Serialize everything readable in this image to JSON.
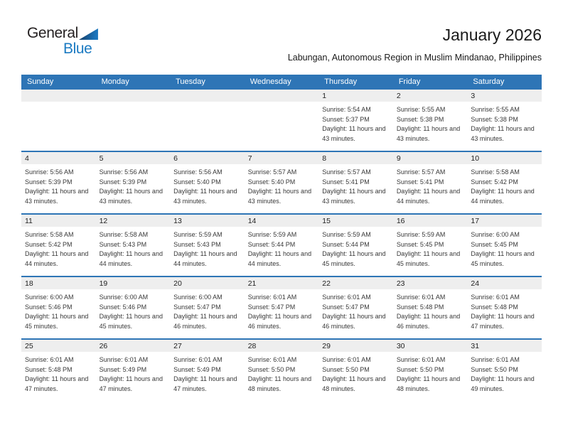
{
  "logo": {
    "line1": "General",
    "line2": "Blue"
  },
  "title": "January 2026",
  "subtitle": "Labungan, Autonomous Region in Muslim Mindanao, Philippines",
  "colors": {
    "header_blue": "#2E75B6",
    "row_line_blue": "#2E75B6",
    "date_band_gray": "#EEEEEE",
    "logo_blue": "#1B7AC2",
    "logo_triangle_dark": "#16395F",
    "text_dark": "#1A1A1A"
  },
  "weekday_headers": [
    "Sunday",
    "Monday",
    "Tuesday",
    "Wednesday",
    "Thursday",
    "Friday",
    "Saturday"
  ],
  "weeks": [
    [
      null,
      null,
      null,
      null,
      {
        "day": "1",
        "sunrise": "Sunrise: 5:54 AM",
        "sunset": "Sunset: 5:37 PM",
        "daylight": "Daylight: 11 hours and 43 minutes."
      },
      {
        "day": "2",
        "sunrise": "Sunrise: 5:55 AM",
        "sunset": "Sunset: 5:38 PM",
        "daylight": "Daylight: 11 hours and 43 minutes."
      },
      {
        "day": "3",
        "sunrise": "Sunrise: 5:55 AM",
        "sunset": "Sunset: 5:38 PM",
        "daylight": "Daylight: 11 hours and 43 minutes."
      }
    ],
    [
      {
        "day": "4",
        "sunrise": "Sunrise: 5:56 AM",
        "sunset": "Sunset: 5:39 PM",
        "daylight": "Daylight: 11 hours and 43 minutes."
      },
      {
        "day": "5",
        "sunrise": "Sunrise: 5:56 AM",
        "sunset": "Sunset: 5:39 PM",
        "daylight": "Daylight: 11 hours and 43 minutes."
      },
      {
        "day": "6",
        "sunrise": "Sunrise: 5:56 AM",
        "sunset": "Sunset: 5:40 PM",
        "daylight": "Daylight: 11 hours and 43 minutes."
      },
      {
        "day": "7",
        "sunrise": "Sunrise: 5:57 AM",
        "sunset": "Sunset: 5:40 PM",
        "daylight": "Daylight: 11 hours and 43 minutes."
      },
      {
        "day": "8",
        "sunrise": "Sunrise: 5:57 AM",
        "sunset": "Sunset: 5:41 PM",
        "daylight": "Daylight: 11 hours and 43 minutes."
      },
      {
        "day": "9",
        "sunrise": "Sunrise: 5:57 AM",
        "sunset": "Sunset: 5:41 PM",
        "daylight": "Daylight: 11 hours and 44 minutes."
      },
      {
        "day": "10",
        "sunrise": "Sunrise: 5:58 AM",
        "sunset": "Sunset: 5:42 PM",
        "daylight": "Daylight: 11 hours and 44 minutes."
      }
    ],
    [
      {
        "day": "11",
        "sunrise": "Sunrise: 5:58 AM",
        "sunset": "Sunset: 5:42 PM",
        "daylight": "Daylight: 11 hours and 44 minutes."
      },
      {
        "day": "12",
        "sunrise": "Sunrise: 5:58 AM",
        "sunset": "Sunset: 5:43 PM",
        "daylight": "Daylight: 11 hours and 44 minutes."
      },
      {
        "day": "13",
        "sunrise": "Sunrise: 5:59 AM",
        "sunset": "Sunset: 5:43 PM",
        "daylight": "Daylight: 11 hours and 44 minutes."
      },
      {
        "day": "14",
        "sunrise": "Sunrise: 5:59 AM",
        "sunset": "Sunset: 5:44 PM",
        "daylight": "Daylight: 11 hours and 44 minutes."
      },
      {
        "day": "15",
        "sunrise": "Sunrise: 5:59 AM",
        "sunset": "Sunset: 5:44 PM",
        "daylight": "Daylight: 11 hours and 45 minutes."
      },
      {
        "day": "16",
        "sunrise": "Sunrise: 5:59 AM",
        "sunset": "Sunset: 5:45 PM",
        "daylight": "Daylight: 11 hours and 45 minutes."
      },
      {
        "day": "17",
        "sunrise": "Sunrise: 6:00 AM",
        "sunset": "Sunset: 5:45 PM",
        "daylight": "Daylight: 11 hours and 45 minutes."
      }
    ],
    [
      {
        "day": "18",
        "sunrise": "Sunrise: 6:00 AM",
        "sunset": "Sunset: 5:46 PM",
        "daylight": "Daylight: 11 hours and 45 minutes."
      },
      {
        "day": "19",
        "sunrise": "Sunrise: 6:00 AM",
        "sunset": "Sunset: 5:46 PM",
        "daylight": "Daylight: 11 hours and 45 minutes."
      },
      {
        "day": "20",
        "sunrise": "Sunrise: 6:00 AM",
        "sunset": "Sunset: 5:47 PM",
        "daylight": "Daylight: 11 hours and 46 minutes."
      },
      {
        "day": "21",
        "sunrise": "Sunrise: 6:01 AM",
        "sunset": "Sunset: 5:47 PM",
        "daylight": "Daylight: 11 hours and 46 minutes."
      },
      {
        "day": "22",
        "sunrise": "Sunrise: 6:01 AM",
        "sunset": "Sunset: 5:47 PM",
        "daylight": "Daylight: 11 hours and 46 minutes."
      },
      {
        "day": "23",
        "sunrise": "Sunrise: 6:01 AM",
        "sunset": "Sunset: 5:48 PM",
        "daylight": "Daylight: 11 hours and 46 minutes."
      },
      {
        "day": "24",
        "sunrise": "Sunrise: 6:01 AM",
        "sunset": "Sunset: 5:48 PM",
        "daylight": "Daylight: 11 hours and 47 minutes."
      }
    ],
    [
      {
        "day": "25",
        "sunrise": "Sunrise: 6:01 AM",
        "sunset": "Sunset: 5:48 PM",
        "daylight": "Daylight: 11 hours and 47 minutes."
      },
      {
        "day": "26",
        "sunrise": "Sunrise: 6:01 AM",
        "sunset": "Sunset: 5:49 PM",
        "daylight": "Daylight: 11 hours and 47 minutes."
      },
      {
        "day": "27",
        "sunrise": "Sunrise: 6:01 AM",
        "sunset": "Sunset: 5:49 PM",
        "daylight": "Daylight: 11 hours and 47 minutes."
      },
      {
        "day": "28",
        "sunrise": "Sunrise: 6:01 AM",
        "sunset": "Sunset: 5:50 PM",
        "daylight": "Daylight: 11 hours and 48 minutes."
      },
      {
        "day": "29",
        "sunrise": "Sunrise: 6:01 AM",
        "sunset": "Sunset: 5:50 PM",
        "daylight": "Daylight: 11 hours and 48 minutes."
      },
      {
        "day": "30",
        "sunrise": "Sunrise: 6:01 AM",
        "sunset": "Sunset: 5:50 PM",
        "daylight": "Daylight: 11 hours and 48 minutes."
      },
      {
        "day": "31",
        "sunrise": "Sunrise: 6:01 AM",
        "sunset": "Sunset: 5:50 PM",
        "daylight": "Daylight: 11 hours and 49 minutes."
      }
    ]
  ]
}
